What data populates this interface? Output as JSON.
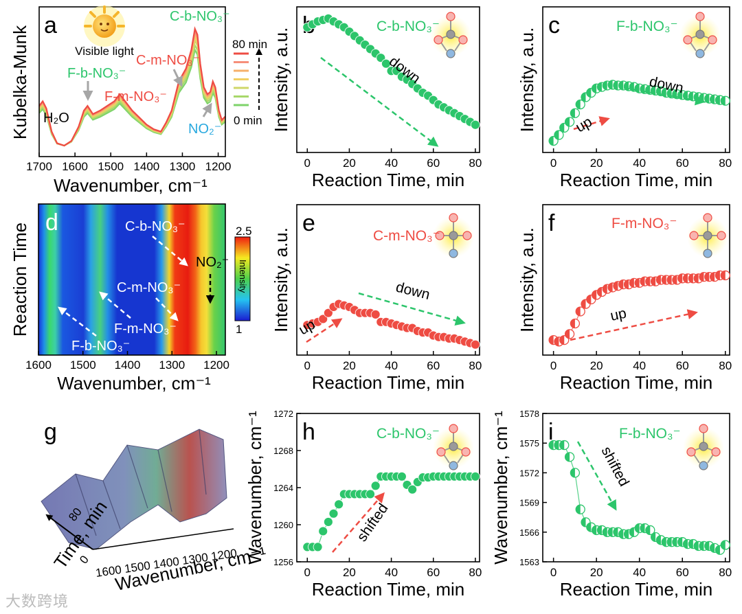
{
  "watermark": "大数跨境",
  "colors": {
    "green": "#2cc56b",
    "red": "#ee4c43",
    "blue": "#29a9df",
    "gray": "#a6a6a6"
  },
  "chart_data": [
    {
      "panel": "a",
      "type": "line",
      "xlabel": "Wavenumber, cm⁻¹",
      "ylabel": "Kubelka-Munk",
      "xlim": [
        1700,
        1180
      ],
      "x_ticks": [
        1700,
        1600,
        1500,
        1400,
        1300,
        1200
      ],
      "legend": {
        "top": "80 min",
        "bottom": "0 min"
      },
      "inset_label": "Visible light",
      "annotations": {
        "h2o": "H₂O",
        "fb": "F-b-NO₃⁻",
        "fm": "F-m-NO₃⁻",
        "cm": "C-m-NO₃⁻",
        "cb": "C-b-NO₃⁻",
        "no2": "NO₂⁻"
      },
      "series": [
        {
          "time_min": 0,
          "color": "#7ed36a",
          "scale": 0.82
        },
        {
          "time_min": 10,
          "color": "#a8d86a",
          "scale": 0.86
        },
        {
          "time_min": 20,
          "color": "#cfd768",
          "scale": 0.9
        },
        {
          "time_min": 30,
          "color": "#f1cf63",
          "scale": 0.93
        },
        {
          "time_min": 40,
          "color": "#f6b06a",
          "scale": 0.96
        },
        {
          "time_min": 60,
          "color": "#f68f7a",
          "scale": 0.98
        },
        {
          "time_min": 80,
          "color": "#ee4c43",
          "scale": 1.0
        }
      ],
      "profile": [
        [
          1700,
          0.34
        ],
        [
          1690,
          0.38
        ],
        [
          1680,
          0.32
        ],
        [
          1665,
          0.12
        ],
        [
          1650,
          0.02
        ],
        [
          1630,
          0.0
        ],
        [
          1610,
          0.04
        ],
        [
          1590,
          0.16
        ],
        [
          1575,
          0.3
        ],
        [
          1565,
          0.34
        ],
        [
          1550,
          0.27
        ],
        [
          1530,
          0.3
        ],
        [
          1510,
          0.34
        ],
        [
          1490,
          0.38
        ],
        [
          1475,
          0.44
        ],
        [
          1460,
          0.38
        ],
        [
          1440,
          0.3
        ],
        [
          1420,
          0.24
        ],
        [
          1400,
          0.18
        ],
        [
          1380,
          0.14
        ],
        [
          1360,
          0.12
        ],
        [
          1345,
          0.2
        ],
        [
          1330,
          0.3
        ],
        [
          1310,
          0.55
        ],
        [
          1290,
          0.66
        ],
        [
          1275,
          0.82
        ],
        [
          1265,
          1.0
        ],
        [
          1258,
          0.95
        ],
        [
          1250,
          0.7
        ],
        [
          1240,
          0.5
        ],
        [
          1230,
          0.44
        ],
        [
          1222,
          0.46
        ],
        [
          1215,
          0.55
        ],
        [
          1208,
          0.5
        ],
        [
          1198,
          0.3
        ],
        [
          1190,
          0.22
        ],
        [
          1180,
          0.25
        ]
      ]
    },
    {
      "panel": "b",
      "type": "scatter",
      "species": "C-b-NO₃⁻",
      "style": "green-full",
      "xlabel": "Reaction Time, min",
      "ylabel": "Intensity, a.u.",
      "xlim": [
        -5,
        82
      ],
      "ylim": [
        0,
        1
      ],
      "x_ticks": [
        0,
        20,
        40,
        60,
        80
      ],
      "trend_label": "down",
      "x": [
        0,
        2.5,
        5,
        7.5,
        10,
        12.5,
        15,
        17.5,
        20,
        22.5,
        25,
        27.5,
        30,
        32.5,
        35,
        37.5,
        40,
        42.5,
        45,
        47.5,
        50,
        52.5,
        55,
        57.5,
        60,
        62.5,
        65,
        67.5,
        70,
        72.5,
        75,
        77.5,
        80
      ],
      "y": [
        0.86,
        0.88,
        0.9,
        0.91,
        0.92,
        0.9,
        0.88,
        0.86,
        0.83,
        0.8,
        0.77,
        0.74,
        0.71,
        0.68,
        0.65,
        0.61,
        0.56,
        0.56,
        0.52,
        0.5,
        0.47,
        0.44,
        0.41,
        0.39,
        0.36,
        0.33,
        0.31,
        0.29,
        0.27,
        0.25,
        0.23,
        0.21,
        0.19
      ]
    },
    {
      "panel": "c",
      "type": "scatter",
      "species": "F-b-NO₃⁻",
      "style": "green-half",
      "xlabel": "Reaction Time, min",
      "ylabel": "Intensity, a.u.",
      "xlim": [
        -5,
        82
      ],
      "ylim": [
        0,
        1
      ],
      "x_ticks": [
        0,
        20,
        40,
        60,
        80
      ],
      "trend_labels": [
        "up",
        "down"
      ],
      "x": [
        0,
        2.5,
        5,
        7.5,
        10,
        12.5,
        15,
        17.5,
        20,
        22.5,
        25,
        27.5,
        30,
        32.5,
        35,
        37.5,
        40,
        42.5,
        45,
        47.5,
        50,
        52.5,
        55,
        57.5,
        60,
        62.5,
        65,
        67.5,
        70,
        72.5,
        75,
        77.5,
        80
      ],
      "y": [
        0.08,
        0.12,
        0.17,
        0.21,
        0.27,
        0.33,
        0.38,
        0.41,
        0.44,
        0.45,
        0.46,
        0.465,
        0.46,
        0.46,
        0.455,
        0.45,
        0.44,
        0.435,
        0.43,
        0.425,
        0.42,
        0.41,
        0.405,
        0.4,
        0.395,
        0.39,
        0.385,
        0.38,
        0.375,
        0.37,
        0.365,
        0.36,
        0.355
      ]
    },
    {
      "panel": "d",
      "type": "heatmap",
      "xlabel": "Wavenumber, cm⁻¹",
      "ylabel": "Reaction Time",
      "xlim": [
        1600,
        1180
      ],
      "x_ticks": [
        1600,
        1500,
        1400,
        1300,
        1200
      ],
      "colorbar": {
        "min": 1.0,
        "max": 2.5,
        "label": "Intensity"
      },
      "annotations": {
        "cb": "C-b-NO₃⁻",
        "no2": "NO₂⁻",
        "cm": "C-m-NO₃⁻",
        "fm": "F-m-NO₃⁻",
        "fb": "F-b-NO₃⁻"
      }
    },
    {
      "panel": "e",
      "type": "scatter",
      "species": "C-m-NO₃⁻",
      "style": "red-full",
      "xlabel": "Reaction Time, min",
      "ylabel": "Intensity, a.u.",
      "xlim": [
        -5,
        82
      ],
      "ylim": [
        0,
        1
      ],
      "x_ticks": [
        0,
        20,
        40,
        60,
        80
      ],
      "trend_labels": [
        "up",
        "down"
      ],
      "x": [
        0,
        2.5,
        5,
        7.5,
        10,
        12.5,
        15,
        17.5,
        20,
        22.5,
        25,
        27.5,
        30,
        32.5,
        35,
        37.5,
        40,
        42.5,
        45,
        47.5,
        50,
        52.5,
        55,
        57.5,
        60,
        62.5,
        65,
        67.5,
        70,
        72.5,
        75,
        77.5,
        80
      ],
      "y": [
        0.2,
        0.21,
        0.22,
        0.24,
        0.28,
        0.32,
        0.34,
        0.33,
        0.32,
        0.3,
        0.28,
        0.28,
        0.28,
        0.27,
        0.22,
        0.22,
        0.21,
        0.2,
        0.19,
        0.18,
        0.18,
        0.16,
        0.15,
        0.15,
        0.13,
        0.12,
        0.12,
        0.11,
        0.11,
        0.1,
        0.09,
        0.08,
        0.07
      ]
    },
    {
      "panel": "f",
      "type": "scatter",
      "species": "F-m-NO₃⁻",
      "style": "red-half",
      "xlabel": "Reaction Time, min",
      "ylabel": "Intensity, a.u.",
      "xlim": [
        -5,
        82
      ],
      "ylim": [
        0,
        1
      ],
      "x_ticks": [
        0,
        20,
        40,
        60,
        80
      ],
      "trend_label": "up",
      "x": [
        0,
        2.5,
        5,
        7.5,
        10,
        12.5,
        15,
        17.5,
        20,
        22.5,
        25,
        27.5,
        30,
        32.5,
        35,
        37.5,
        40,
        42.5,
        45,
        47.5,
        50,
        52.5,
        55,
        57.5,
        60,
        62.5,
        65,
        67.5,
        70,
        72.5,
        75,
        77.5,
        80
      ],
      "y": [
        0.1,
        0.09,
        0.1,
        0.14,
        0.21,
        0.29,
        0.34,
        0.37,
        0.4,
        0.42,
        0.44,
        0.45,
        0.46,
        0.47,
        0.47,
        0.48,
        0.48,
        0.49,
        0.49,
        0.49,
        0.5,
        0.5,
        0.5,
        0.5,
        0.51,
        0.51,
        0.51,
        0.51,
        0.52,
        0.52,
        0.52,
        0.53,
        0.53
      ]
    },
    {
      "panel": "g",
      "type": "surface",
      "xlabel": "Wavenumber, cm⁻¹",
      "ylabel": "Time, min",
      "x_ticks": [
        1600,
        1500,
        1400,
        1300,
        1200
      ],
      "y_ticks": [
        0,
        80
      ]
    },
    {
      "panel": "h",
      "type": "scatter",
      "species": "C-b-NO₃⁻",
      "style": "green-full",
      "xlabel": "Reaction Time, min",
      "ylabel": "Wavenumber, cm⁻¹",
      "xlim": [
        -5,
        82
      ],
      "ylim": [
        1256,
        1272
      ],
      "y_ticks": [
        1256,
        1260,
        1264,
        1268,
        1272
      ],
      "x_ticks": [
        0,
        20,
        40,
        60,
        80
      ],
      "trend_label": "shifted",
      "x": [
        0,
        2.5,
        5,
        7.5,
        10,
        12.5,
        15,
        17.5,
        20,
        22.5,
        25,
        27.5,
        30,
        32.5,
        35,
        37.5,
        40,
        42.5,
        45,
        47.5,
        50,
        52.5,
        55,
        57.5,
        60,
        62.5,
        65,
        67.5,
        70,
        72.5,
        75,
        77.5,
        80
      ],
      "y": [
        1257.6,
        1257.6,
        1257.6,
        1259.3,
        1260.3,
        1261.2,
        1262.2,
        1263.3,
        1263.3,
        1263.3,
        1263.3,
        1263.3,
        1263.3,
        1264.2,
        1265.2,
        1265.2,
        1265.2,
        1265.2,
        1265.2,
        1264.3,
        1263.8,
        1264.6,
        1265.1,
        1265.1,
        1265.2,
        1265.2,
        1265.2,
        1265.2,
        1265.2,
        1265.2,
        1265.2,
        1265.2,
        1265.2
      ]
    },
    {
      "panel": "i",
      "type": "scatter",
      "species": "F-b-NO₃⁻",
      "style": "green-half",
      "xlabel": "Reaction Time, min",
      "ylabel": "Wavenumber, cm⁻¹",
      "xlim": [
        -5,
        82
      ],
      "ylim": [
        1563,
        1578
      ],
      "y_ticks": [
        1563,
        1566,
        1569,
        1572,
        1575,
        1578
      ],
      "x_ticks": [
        0,
        20,
        40,
        60,
        80
      ],
      "trend_label": "shifted",
      "x": [
        0,
        2.5,
        5,
        7.5,
        10,
        12.5,
        15,
        17.5,
        20,
        22.5,
        25,
        27.5,
        30,
        32.5,
        35,
        37.5,
        40,
        42.5,
        45,
        47.5,
        50,
        52.5,
        55,
        57.5,
        60,
        62.5,
        65,
        67.5,
        70,
        72.5,
        75,
        77.5,
        80
      ],
      "y": [
        1574.8,
        1574.8,
        1574.8,
        1573.6,
        1572.0,
        1568.3,
        1567.0,
        1566.5,
        1566.2,
        1566.2,
        1566.0,
        1566.0,
        1566.0,
        1565.8,
        1565.8,
        1566.0,
        1566.4,
        1566.4,
        1566.2,
        1565.5,
        1565.2,
        1565.0,
        1565.0,
        1565.0,
        1565.0,
        1564.8,
        1564.8,
        1564.6,
        1564.6,
        1564.6,
        1564.4,
        1564.2,
        1564.7
      ]
    }
  ]
}
